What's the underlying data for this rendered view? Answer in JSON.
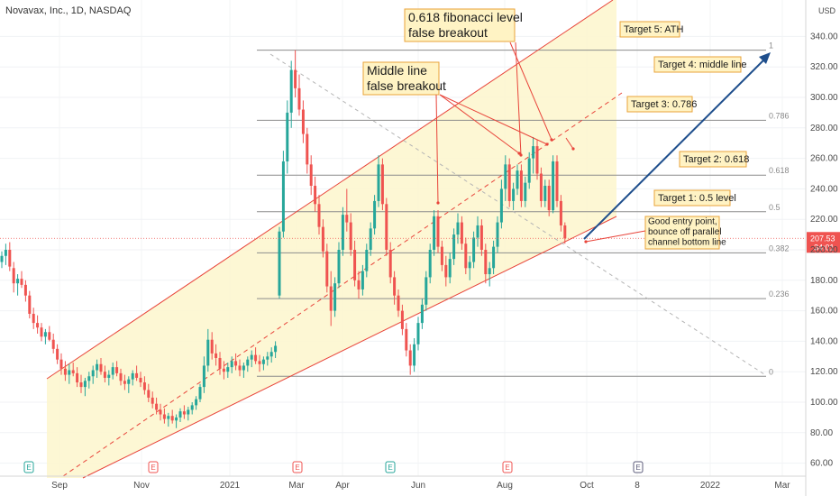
{
  "chart_data": {
    "type": "candlestick",
    "title": "Novavax, Inc., 1D, NASDAQ",
    "currency": "USD",
    "x_ticks": [
      "Sep",
      "Nov",
      "2021",
      "Mar",
      "Apr",
      "Jun",
      "Aug",
      "Oct",
      "8",
      "2022",
      "Mar"
    ],
    "y_ticks": [
      60,
      80,
      100,
      120,
      140,
      160,
      180,
      200,
      220,
      240,
      260,
      280,
      300,
      320,
      340
    ],
    "ylim": [
      48,
      360
    ],
    "last_price": "207.53",
    "countdown": "34:01",
    "fib_levels": [
      {
        "label": "1",
        "value": 331
      },
      {
        "label": "0.786",
        "value": 285
      },
      {
        "label": "0.618",
        "value": 249
      },
      {
        "label": "0.5",
        "value": 225
      },
      {
        "label": "0.382",
        "value": 198
      },
      {
        "label": "0.236",
        "value": 168
      },
      {
        "label": "0",
        "value": 117
      }
    ],
    "candles": [
      [
        1,
        192,
        199,
        188,
        196
      ],
      [
        2,
        196,
        204,
        190,
        200
      ],
      [
        3,
        200,
        205,
        186,
        189
      ],
      [
        4,
        188,
        192,
        172,
        178
      ],
      [
        5,
        178,
        184,
        170,
        181
      ],
      [
        6,
        181,
        186,
        175,
        177
      ],
      [
        7,
        177,
        180,
        166,
        170
      ],
      [
        8,
        170,
        173,
        155,
        158
      ],
      [
        9,
        158,
        162,
        148,
        152
      ],
      [
        10,
        152,
        157,
        145,
        149
      ],
      [
        11,
        149,
        152,
        140,
        143
      ],
      [
        12,
        143,
        148,
        138,
        146
      ],
      [
        13,
        146,
        150,
        140,
        141
      ],
      [
        14,
        141,
        145,
        132,
        135
      ],
      [
        15,
        135,
        138,
        125,
        128
      ],
      [
        16,
        128,
        132,
        118,
        122
      ],
      [
        17,
        122,
        127,
        114,
        118
      ],
      [
        18,
        118,
        125,
        112,
        121
      ],
      [
        19,
        121,
        126,
        117,
        119
      ],
      [
        20,
        119,
        123,
        110,
        113
      ],
      [
        21,
        113,
        118,
        106,
        110
      ],
      [
        22,
        110,
        116,
        104,
        114
      ],
      [
        23,
        114,
        120,
        109,
        117
      ],
      [
        24,
        117,
        124,
        112,
        121
      ],
      [
        25,
        121,
        128,
        116,
        125
      ],
      [
        26,
        125,
        129,
        118,
        120
      ],
      [
        27,
        120,
        124,
        113,
        116
      ],
      [
        28,
        116,
        121,
        111,
        118
      ],
      [
        29,
        118,
        126,
        115,
        123
      ],
      [
        30,
        123,
        127,
        117,
        119
      ],
      [
        31,
        119,
        122,
        111,
        114
      ],
      [
        32,
        114,
        118,
        108,
        112
      ],
      [
        33,
        112,
        117,
        106,
        115
      ],
      [
        34,
        115,
        121,
        111,
        119
      ],
      [
        35,
        119,
        124,
        114,
        116
      ],
      [
        36,
        116,
        120,
        110,
        113
      ],
      [
        37,
        113,
        117,
        105,
        108
      ],
      [
        38,
        108,
        112,
        100,
        103
      ],
      [
        39,
        103,
        107,
        96,
        99
      ],
      [
        40,
        99,
        103,
        92,
        95
      ],
      [
        41,
        95,
        99,
        88,
        92
      ],
      [
        42,
        92,
        96,
        86,
        89
      ],
      [
        43,
        89,
        93,
        84,
        91
      ],
      [
        44,
        91,
        95,
        86,
        88
      ],
      [
        45,
        88,
        92,
        83,
        90
      ],
      [
        46,
        90,
        96,
        87,
        94
      ],
      [
        47,
        94,
        98,
        89,
        92
      ],
      [
        48,
        92,
        97,
        88,
        95
      ],
      [
        49,
        95,
        100,
        92,
        98
      ],
      [
        50,
        98,
        104,
        95,
        102
      ],
      [
        51,
        102,
        112,
        100,
        110
      ],
      [
        52,
        110,
        130,
        106,
        124
      ],
      [
        53,
        124,
        148,
        120,
        141
      ],
      [
        54,
        141,
        146,
        128,
        132
      ],
      [
        55,
        132,
        138,
        124,
        129
      ],
      [
        56,
        129,
        133,
        118,
        122
      ],
      [
        57,
        122,
        127,
        115,
        120
      ],
      [
        58,
        120,
        126,
        116,
        123
      ],
      [
        59,
        123,
        130,
        119,
        127
      ],
      [
        60,
        127,
        132,
        121,
        124
      ],
      [
        61,
        124,
        128,
        117,
        121
      ],
      [
        62,
        121,
        126,
        116,
        124
      ],
      [
        63,
        124,
        130,
        120,
        128
      ],
      [
        64,
        128,
        134,
        123,
        131
      ],
      [
        65,
        131,
        136,
        125,
        127
      ],
      [
        66,
        127,
        131,
        120,
        125
      ],
      [
        67,
        125,
        130,
        121,
        128
      ],
      [
        68,
        128,
        133,
        124,
        130
      ],
      [
        69,
        130,
        136,
        126,
        133
      ],
      [
        70,
        133,
        140,
        129,
        137
      ],
      [
        71,
        170,
        215,
        168,
        212
      ],
      [
        72,
        212,
        265,
        208,
        258
      ],
      [
        73,
        258,
        298,
        250,
        290
      ],
      [
        74,
        290,
        324,
        280,
        318
      ],
      [
        75,
        318,
        331,
        300,
        306
      ],
      [
        76,
        306,
        315,
        288,
        292
      ],
      [
        77,
        292,
        298,
        270,
        276
      ],
      [
        78,
        276,
        280,
        250,
        256
      ],
      [
        79,
        256,
        262,
        236,
        242
      ],
      [
        80,
        242,
        248,
        225,
        230
      ],
      [
        81,
        230,
        236,
        210,
        215
      ],
      [
        82,
        215,
        220,
        195,
        199
      ],
      [
        83,
        199,
        204,
        172,
        176
      ],
      [
        84,
        176,
        186,
        150,
        160
      ],
      [
        85,
        160,
        182,
        156,
        178
      ],
      [
        86,
        178,
        205,
        175,
        200
      ],
      [
        87,
        200,
        228,
        196,
        223
      ],
      [
        88,
        223,
        240,
        212,
        218
      ],
      [
        89,
        218,
        224,
        196,
        200
      ],
      [
        90,
        200,
        206,
        176,
        180
      ],
      [
        91,
        180,
        186,
        168,
        174
      ],
      [
        92,
        174,
        190,
        170,
        186
      ],
      [
        93,
        186,
        204,
        182,
        200
      ],
      [
        94,
        200,
        218,
        196,
        214
      ],
      [
        95,
        214,
        236,
        210,
        232
      ],
      [
        96,
        232,
        262,
        228,
        256
      ],
      [
        97,
        256,
        260,
        226,
        230
      ],
      [
        98,
        230,
        234,
        196,
        200
      ],
      [
        99,
        200,
        205,
        178,
        182
      ],
      [
        100,
        182,
        186,
        164,
        170
      ],
      [
        101,
        170,
        174,
        156,
        160
      ],
      [
        102,
        160,
        164,
        144,
        148
      ],
      [
        103,
        148,
        152,
        130,
        134
      ],
      [
        104,
        134,
        138,
        118,
        124
      ],
      [
        105,
        124,
        142,
        120,
        138
      ],
      [
        106,
        138,
        156,
        134,
        152
      ],
      [
        107,
        152,
        168,
        148,
        164
      ],
      [
        108,
        164,
        186,
        160,
        182
      ],
      [
        109,
        182,
        204,
        178,
        200
      ],
      [
        110,
        200,
        226,
        196,
        222
      ],
      [
        111,
        222,
        226,
        198,
        202
      ],
      [
        112,
        202,
        206,
        186,
        190
      ],
      [
        113,
        190,
        196,
        176,
        182
      ],
      [
        114,
        182,
        198,
        178,
        194
      ],
      [
        115,
        194,
        214,
        190,
        210
      ],
      [
        116,
        210,
        224,
        204,
        218
      ],
      [
        117,
        218,
        222,
        200,
        204
      ],
      [
        118,
        204,
        208,
        184,
        188
      ],
      [
        119,
        188,
        196,
        180,
        192
      ],
      [
        120,
        192,
        212,
        188,
        208
      ],
      [
        121,
        208,
        222,
        202,
        216
      ],
      [
        122,
        216,
        220,
        196,
        200
      ],
      [
        123,
        200,
        204,
        178,
        184
      ],
      [
        124,
        184,
        192,
        176,
        188
      ],
      [
        125,
        188,
        206,
        184,
        202
      ],
      [
        126,
        202,
        222,
        198,
        218
      ],
      [
        127,
        218,
        246,
        214,
        240
      ],
      [
        128,
        240,
        262,
        232,
        256
      ],
      [
        129,
        256,
        260,
        228,
        232
      ],
      [
        130,
        232,
        244,
        226,
        240
      ],
      [
        131,
        240,
        256,
        236,
        252
      ],
      [
        132,
        252,
        256,
        228,
        232
      ],
      [
        133,
        232,
        248,
        228,
        244
      ],
      [
        134,
        244,
        264,
        240,
        260
      ],
      [
        135,
        260,
        274,
        250,
        268
      ],
      [
        136,
        268,
        272,
        246,
        250
      ],
      [
        137,
        250,
        254,
        228,
        232
      ],
      [
        138,
        232,
        246,
        228,
        242
      ],
      [
        139,
        242,
        246,
        222,
        226
      ],
      [
        140,
        226,
        262,
        224,
        258
      ],
      [
        141,
        258,
        262,
        228,
        232
      ],
      [
        142,
        232,
        236,
        212,
        216
      ],
      [
        143,
        216,
        218,
        204,
        207.53
      ]
    ],
    "annotations": {
      "fib_false_breakout": [
        "0.618 fibonacci level",
        "false breakout"
      ],
      "middle_false_breakout": [
        "Middle line",
        "false breakout"
      ],
      "entry_note": [
        "Good entry point,",
        "bounce off parallel",
        "channel bottom line"
      ]
    },
    "targets": [
      "Target 5: ATH",
      "Target 4: middle line",
      "Target 3: 0.786",
      "Target 2: 0.618",
      "Target 1: 0.5 level"
    ],
    "event_markers": [
      "E",
      "E",
      "E",
      "E",
      "E",
      "E"
    ],
    "colors": {
      "up": "#26a69a",
      "down": "#ef5350",
      "channel": "#f5c518",
      "channel_line": "#e8443a",
      "target_box": "#fff3c4",
      "target_border": "#e8a33a",
      "arrow": "#1e4e8c",
      "fib_line": "#8c8c8c"
    }
  }
}
